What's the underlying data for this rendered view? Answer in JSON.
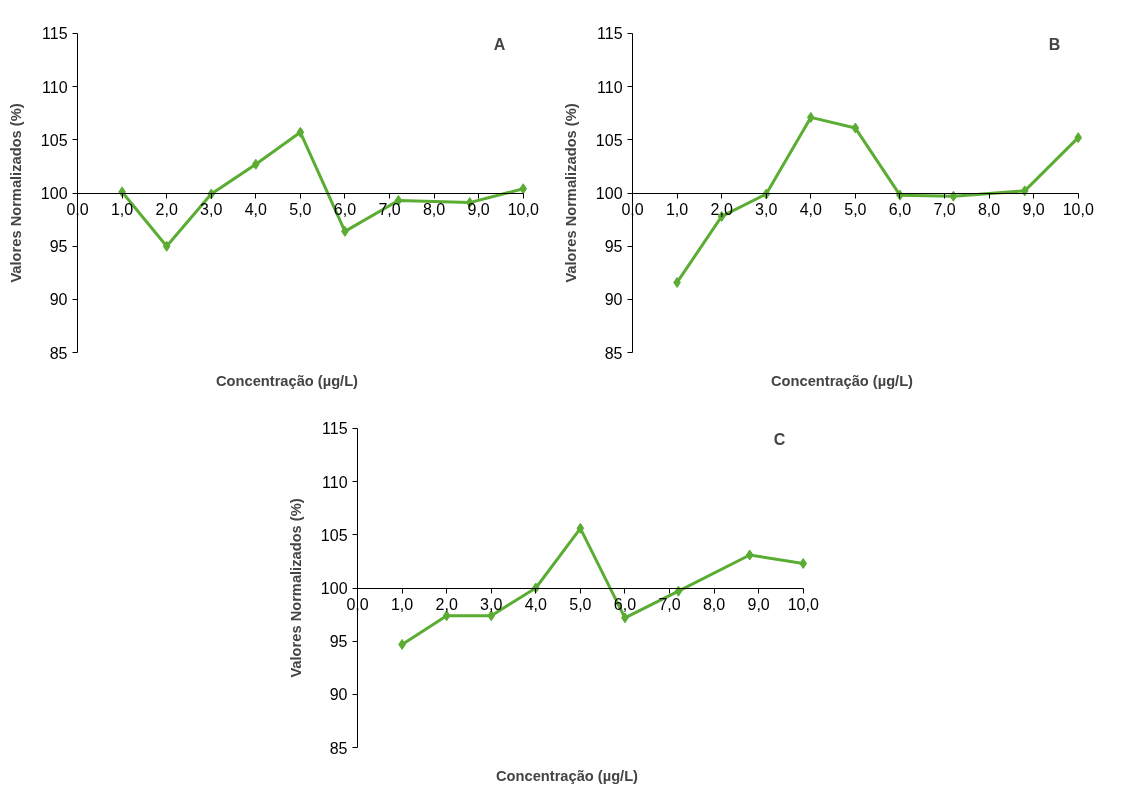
{
  "chart_data": [
    {
      "type": "line",
      "annotations": [
        "A"
      ],
      "xlabel": "Concentração (µg/L)",
      "ylabel": "Valores Normalizados (%)",
      "x": [
        1.0,
        2.0,
        3.0,
        4.0,
        5.0,
        6.0,
        7.2,
        8.8,
        10.0
      ],
      "series": [
        {
          "color": "#5aac32",
          "values": [
            100.1,
            95.0,
            99.9,
            102.7,
            105.7,
            96.4,
            99.3,
            99.1,
            100.4
          ]
        }
      ],
      "xlim": [
        0,
        10
      ],
      "ylim": [
        85,
        115
      ],
      "xticks": [
        {
          "value": 0,
          "label": "0,0"
        },
        {
          "value": 1,
          "label": "1,0"
        },
        {
          "value": 2,
          "label": "2,0"
        },
        {
          "value": 3,
          "label": "3,0"
        },
        {
          "value": 4,
          "label": "4,0"
        },
        {
          "value": 5,
          "label": "5,0"
        },
        {
          "value": 6,
          "label": "6,0"
        },
        {
          "value": 7,
          "label": "7,0"
        },
        {
          "value": 8,
          "label": "8,0"
        },
        {
          "value": 9,
          "label": "9,0"
        },
        {
          "value": 10,
          "label": "10,0"
        }
      ],
      "yticks": [
        85,
        90,
        95,
        100,
        105,
        110,
        115
      ],
      "marker": "diamond",
      "line_style": "solid"
    },
    {
      "type": "line",
      "annotations": [
        "B"
      ],
      "xlabel": "Concentração (µg/L)",
      "ylabel": "Valores Normalizados (%)",
      "x": [
        1.0,
        2.0,
        3.0,
        4.0,
        5.0,
        6.0,
        7.2,
        8.8,
        10.0
      ],
      "series": [
        {
          "color": "#5aac32",
          "values": [
            91.6,
            97.8,
            99.9,
            107.1,
            106.1,
            99.8,
            99.7,
            100.2,
            105.2
          ]
        }
      ],
      "xlim": [
        0,
        10
      ],
      "ylim": [
        85,
        115
      ],
      "xticks": [
        {
          "value": 0,
          "label": "0,0"
        },
        {
          "value": 1,
          "label": "1,0"
        },
        {
          "value": 2,
          "label": "2,0"
        },
        {
          "value": 3,
          "label": "3,0"
        },
        {
          "value": 4,
          "label": "4,0"
        },
        {
          "value": 5,
          "label": "5,0"
        },
        {
          "value": 6,
          "label": "6,0"
        },
        {
          "value": 7,
          "label": "7,0"
        },
        {
          "value": 8,
          "label": "8,0"
        },
        {
          "value": 9,
          "label": "9,0"
        },
        {
          "value": 10,
          "label": "10,0"
        }
      ],
      "yticks": [
        85,
        90,
        95,
        100,
        105,
        110,
        115
      ],
      "marker": "diamond",
      "line_style": "solid"
    },
    {
      "type": "line",
      "annotations": [
        "C"
      ],
      "xlabel": "Concentração (µg/L)",
      "ylabel": "Valores Normalizados (%)",
      "x": [
        1.0,
        2.0,
        3.0,
        4.0,
        5.0,
        6.0,
        7.2,
        8.8,
        10.0
      ],
      "series": [
        {
          "color": "#5aac32",
          "values": [
            94.7,
            97.4,
            97.4,
            100.0,
            105.6,
            97.2,
            99.7,
            103.1,
            102.3
          ]
        }
      ],
      "xlim": [
        0,
        10
      ],
      "ylim": [
        85,
        115
      ],
      "xticks": [
        {
          "value": 0,
          "label": "0,0"
        },
        {
          "value": 1,
          "label": "1,0"
        },
        {
          "value": 2,
          "label": "2,0"
        },
        {
          "value": 3,
          "label": "3,0"
        },
        {
          "value": 4,
          "label": "4,0"
        },
        {
          "value": 5,
          "label": "5,0"
        },
        {
          "value": 6,
          "label": "6,0"
        },
        {
          "value": 7,
          "label": "7,0"
        },
        {
          "value": 8,
          "label": "8,0"
        },
        {
          "value": 9,
          "label": "9,0"
        },
        {
          "value": 10,
          "label": "10,0"
        }
      ],
      "yticks": [
        85,
        90,
        95,
        100,
        105,
        110,
        115
      ],
      "marker": "diamond",
      "line_style": "solid"
    }
  ]
}
